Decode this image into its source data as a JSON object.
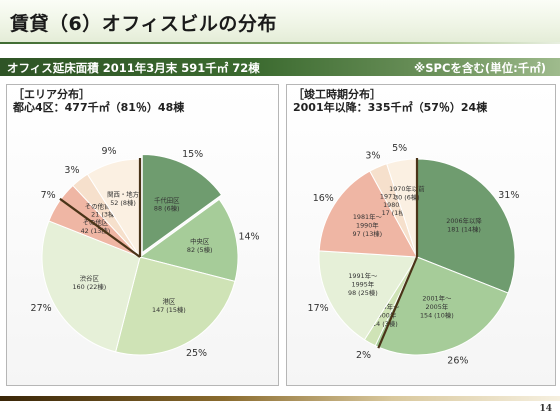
{
  "title": "賃貸（6）オフィスビルの分布",
  "subheader": {
    "left": "オフィス延床面積 2011年3月末 591千㎡ 72棟",
    "right": "※SPCを含む(単位:千㎡)"
  },
  "colors": {
    "dark_green": "#6f9c6f",
    "mid_green": "#a6cc99",
    "light_green": "#cfe3b6",
    "pale_green": "#e6f0d8",
    "salmon": "#efb6a4",
    "cream": "#f6e0cc",
    "pale_cream": "#fbf0e2"
  },
  "left_panel": {
    "heading1": "［エリア分布］",
    "heading2": "都心4区：477千㎡（81％）48棟",
    "slices": [
      {
        "label1": "千代田区",
        "label2": "88 (6棟)",
        "pct": "15%",
        "value": 15,
        "color": "#6f9c6f"
      },
      {
        "label1": "中央区",
        "label2": "82 (5棟)",
        "pct": "14%",
        "value": 14,
        "color": "#a6cc99"
      },
      {
        "label1": "港区",
        "label2": "147 (15棟)",
        "pct": "25%",
        "value": 25,
        "color": "#cfe3b6"
      },
      {
        "label1": "渋谷区",
        "label2": "160 (22棟)",
        "pct": "27%",
        "value": 27,
        "color": "#e6f0d8"
      },
      {
        "label1": "その他区",
        "label2": "42 (13棟)",
        "pct": "7%",
        "value": 7,
        "color": "#efb6a4"
      },
      {
        "label1": "その他首都圏",
        "label2": "21 (3棟)",
        "pct": "3%",
        "value": 3,
        "color": "#f6e0cc"
      },
      {
        "label1": "関西・地方",
        "label2": "52 (8棟)",
        "pct": "9%",
        "value": 9,
        "color": "#fbf0e2"
      }
    ]
  },
  "right_panel": {
    "heading1": "［竣工時期分布］",
    "heading2": "2001年以降：335千㎡（57％）24棟",
    "slices": [
      {
        "label1": "2006年以降",
        "label2": "181 (14棟)",
        "pct": "31%",
        "value": 31,
        "color": "#6f9c6f"
      },
      {
        "label1": "2001年～",
        "label3": "2005年",
        "label2": "154 (10棟)",
        "pct": "26%",
        "value": 26,
        "color": "#a6cc99"
      },
      {
        "label1": "1996年～",
        "label3": "2000年",
        "label2": "14 (3棟)",
        "pct": "2%",
        "value": 2,
        "color": "#cfe3b6"
      },
      {
        "label1": "1991年～",
        "label3": "1995年",
        "label2": "98 (25棟)",
        "pct": "17%",
        "value": 17,
        "color": "#e6f0d8"
      },
      {
        "label1": "1981年～",
        "label3": "1990年",
        "label2": "97 (13棟)",
        "pct": "16%",
        "value": 16,
        "color": "#efb6a4"
      },
      {
        "label1": "1971年～",
        "label3": "1980年",
        "label2": "17 (1棟)",
        "pct": "3%",
        "value": 3,
        "color": "#f6e0cc"
      },
      {
        "label1": "1970年以前",
        "label2": "30 (6棟)",
        "pct": "5%",
        "value": 5,
        "color": "#fbf0e2"
      }
    ]
  },
  "page_number": "14"
}
